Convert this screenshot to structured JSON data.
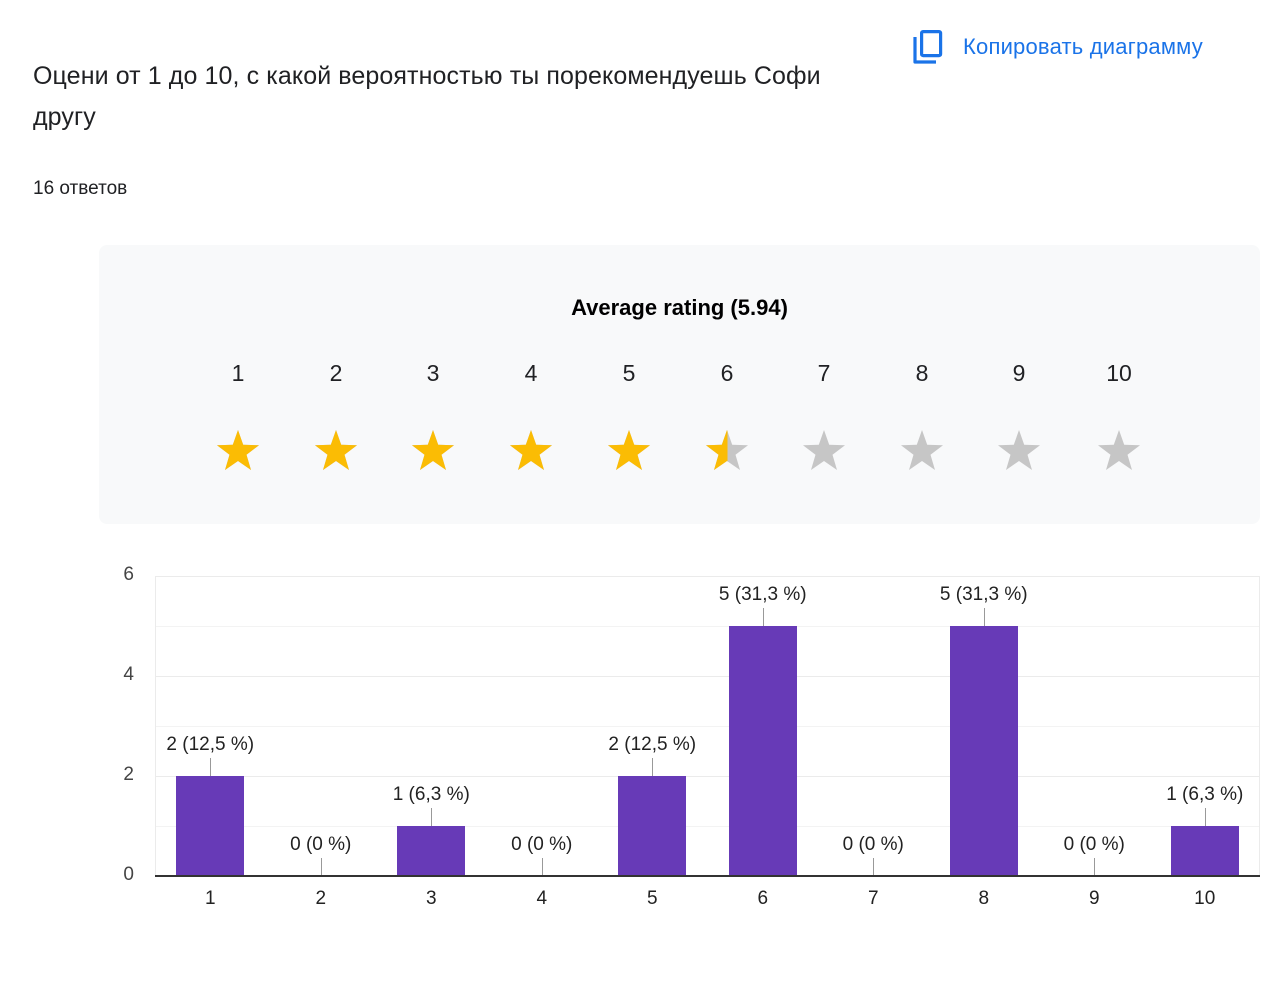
{
  "header": {
    "question_title": "Оцени от 1 до 10, с какой вероятностью ты порекомендуешь Софи другу",
    "copy_button_label": "Копировать диаграмму",
    "copy_icon": "copy-icon",
    "response_count": "16 ответов"
  },
  "rating_panel": {
    "title": "Average rating (5.94)",
    "average": 5.94,
    "max": 10,
    "filled_color": "#fbbc04",
    "empty_color": "#c6c6c6",
    "stars": [
      {
        "label": "1",
        "fill": 1.0
      },
      {
        "label": "2",
        "fill": 1.0
      },
      {
        "label": "3",
        "fill": 1.0
      },
      {
        "label": "4",
        "fill": 1.0
      },
      {
        "label": "5",
        "fill": 1.0
      },
      {
        "label": "6",
        "fill": 0.94
      },
      {
        "label": "7",
        "fill": 0.0
      },
      {
        "label": "8",
        "fill": 0.0
      },
      {
        "label": "9",
        "fill": 0.0
      },
      {
        "label": "10",
        "fill": 0.0
      }
    ]
  },
  "chart_data": {
    "type": "bar",
    "title": "",
    "xlabel": "",
    "ylabel": "",
    "categories": [
      "1",
      "2",
      "3",
      "4",
      "5",
      "6",
      "7",
      "8",
      "9",
      "10"
    ],
    "values": [
      2,
      0,
      1,
      0,
      2,
      5,
      0,
      5,
      0,
      1
    ],
    "data_labels": [
      "2 (12,5 %)",
      "0 (0 %)",
      "1 (6,3 %)",
      "0 (0 %)",
      "2 (12,5 %)",
      "5 (31,3 %)",
      "0 (0 %)",
      "5 (31,3 %)",
      "0 (0 %)",
      "1 (6,3 %)"
    ],
    "percentages": [
      12.5,
      0,
      6.3,
      0,
      12.5,
      31.3,
      0,
      31.3,
      0,
      6.3
    ],
    "ylim": [
      0,
      6
    ],
    "y_ticks": [
      "0",
      "2",
      "4",
      "6"
    ],
    "grid": true,
    "legend": "none",
    "bar_color": "#673ab7"
  }
}
